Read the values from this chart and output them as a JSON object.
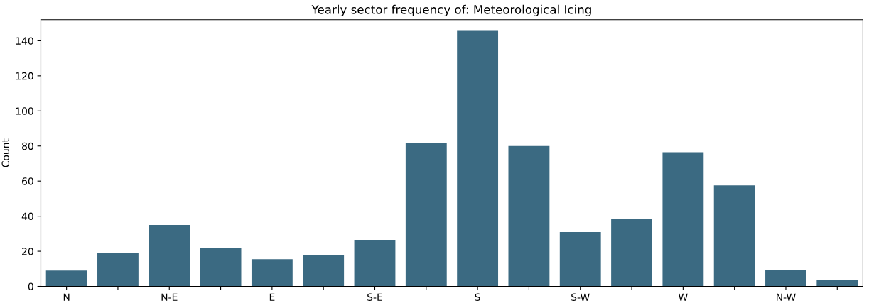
{
  "chart_data": {
    "type": "bar",
    "title": "Yearly sector frequency of: Meteorological Icing",
    "ylabel": "Count",
    "categories": [
      "N",
      null,
      "N-E",
      null,
      "E",
      null,
      "S-E",
      null,
      "S",
      null,
      "S-W",
      null,
      "W",
      null,
      "N-W",
      null
    ],
    "values": [
      9,
      19,
      35,
      22,
      15.5,
      18,
      26.5,
      81.5,
      146,
      80,
      31,
      38.5,
      76.5,
      57.5,
      9.5,
      3.5
    ],
    "color": "#3b6a82",
    "ylim": [
      0,
      152
    ],
    "yticks": [
      0,
      20,
      40,
      60,
      80,
      100,
      120,
      140
    ],
    "grid": false
  }
}
